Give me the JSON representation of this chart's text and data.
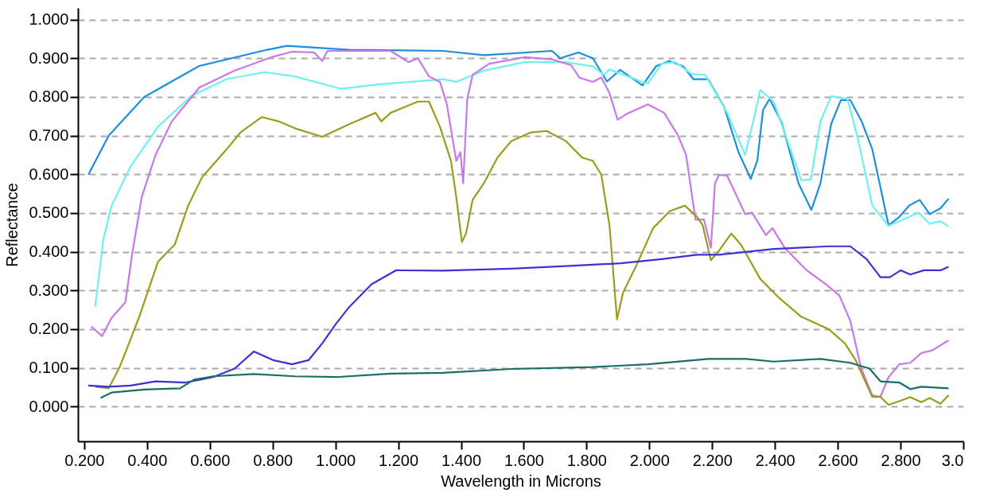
{
  "chart_data": {
    "type": "line",
    "xlabel": "Wavelength in Microns",
    "ylabel": "Reflectance",
    "grid": "y",
    "xlim": [
      0.18,
      3.0
    ],
    "ylim": [
      -0.09,
      1.03
    ],
    "xticks": [
      {
        "value": 0.2,
        "label": "0.200"
      },
      {
        "value": 0.4,
        "label": "0.400"
      },
      {
        "value": 0.6,
        "label": "0.600"
      },
      {
        "value": 0.8,
        "label": "0.800"
      },
      {
        "value": 1.0,
        "label": "1.000"
      },
      {
        "value": 1.2,
        "label": "1.200"
      },
      {
        "value": 1.4,
        "label": "1.400"
      },
      {
        "value": 1.6,
        "label": "1.600"
      },
      {
        "value": 1.8,
        "label": "1.800"
      },
      {
        "value": 2.0,
        "label": "2.000"
      },
      {
        "value": 2.2,
        "label": "2.200"
      },
      {
        "value": 2.4,
        "label": "2.400"
      },
      {
        "value": 2.6,
        "label": "2.600"
      },
      {
        "value": 2.8,
        "label": "2.800"
      },
      {
        "value": 3.0,
        "label": "3.0"
      }
    ],
    "yticks": [
      {
        "value": 0.0,
        "label": "0.000"
      },
      {
        "value": 0.1,
        "label": "0.100"
      },
      {
        "value": 0.2,
        "label": "0.200"
      },
      {
        "value": 0.3,
        "label": "0.300"
      },
      {
        "value": 0.4,
        "label": "0.400"
      },
      {
        "value": 0.5,
        "label": "0.500"
      },
      {
        "value": 0.6,
        "label": "0.600"
      },
      {
        "value": 0.7,
        "label": "0.700"
      },
      {
        "value": 0.8,
        "label": "0.800"
      },
      {
        "value": 0.9,
        "label": "0.900"
      },
      {
        "value": 1.0,
        "label": "1.000"
      }
    ],
    "series": [
      {
        "color": "#1e8fdc",
        "x": [
          0.213,
          0.278,
          0.391,
          0.566,
          0.783,
          0.846,
          1.045,
          1.343,
          1.473,
          1.69,
          1.716,
          1.774,
          1.82,
          1.865,
          1.907,
          1.978,
          2.022,
          2.064,
          2.108,
          2.14,
          2.187,
          2.239,
          2.284,
          2.323,
          2.344,
          2.362,
          2.383,
          2.422,
          2.475,
          2.516,
          2.545,
          2.579,
          2.61,
          2.64,
          2.676,
          2.71,
          2.762,
          2.796,
          2.827,
          2.861,
          2.893,
          2.927,
          2.953
        ],
        "values": [
          0.599,
          0.7,
          0.8,
          0.88,
          0.922,
          0.932,
          0.922,
          0.919,
          0.908,
          0.919,
          0.9,
          0.915,
          0.9,
          0.84,
          0.87,
          0.83,
          0.88,
          0.893,
          0.879,
          0.846,
          0.846,
          0.773,
          0.657,
          0.588,
          0.636,
          0.766,
          0.795,
          0.733,
          0.577,
          0.508,
          0.577,
          0.73,
          0.792,
          0.792,
          0.737,
          0.665,
          0.468,
          0.49,
          0.519,
          0.534,
          0.497,
          0.512,
          0.537
        ]
      },
      {
        "color": "#6ff0f0",
        "x": [
          0.235,
          0.261,
          0.287,
          0.348,
          0.435,
          0.54,
          0.653,
          0.775,
          0.871,
          1.019,
          1.132,
          1.342,
          1.385,
          1.473,
          1.603,
          1.734,
          1.82,
          1.855,
          1.873,
          1.978,
          1.995,
          2.039,
          2.082,
          2.135,
          2.178,
          2.248,
          2.305,
          2.331,
          2.353,
          2.396,
          2.484,
          2.514,
          2.545,
          2.579,
          2.631,
          2.666,
          2.71,
          2.762,
          2.858,
          2.893,
          2.927,
          2.953
        ],
        "values": [
          0.258,
          0.432,
          0.519,
          0.621,
          0.723,
          0.802,
          0.846,
          0.864,
          0.853,
          0.821,
          0.832,
          0.846,
          0.839,
          0.868,
          0.89,
          0.89,
          0.879,
          0.857,
          0.871,
          0.839,
          0.835,
          0.886,
          0.89,
          0.859,
          0.857,
          0.759,
          0.65,
          0.737,
          0.818,
          0.788,
          0.585,
          0.586,
          0.737,
          0.802,
          0.795,
          0.686,
          0.519,
          0.467,
          0.501,
          0.472,
          0.479,
          0.465
        ]
      },
      {
        "color": "#c878ea",
        "x": [
          0.222,
          0.257,
          0.287,
          0.331,
          0.353,
          0.383,
          0.427,
          0.479,
          0.566,
          0.679,
          0.801,
          0.862,
          0.932,
          0.958,
          0.975,
          1.176,
          1.233,
          1.263,
          1.298,
          1.333,
          1.355,
          1.385,
          1.398,
          1.407,
          1.42,
          1.437,
          1.49,
          1.603,
          1.69,
          1.751,
          1.777,
          1.82,
          1.847,
          1.873,
          1.899,
          1.925,
          1.995,
          2.047,
          2.091,
          2.117,
          2.147,
          2.174,
          2.196,
          2.209,
          2.222,
          2.248,
          2.284,
          2.305,
          2.327,
          2.371,
          2.392,
          2.431,
          2.501,
          2.562,
          2.605,
          2.64,
          2.675,
          2.71,
          2.736,
          2.762,
          2.796,
          2.831,
          2.866,
          2.901,
          2.953
        ],
        "values": [
          0.207,
          0.182,
          0.229,
          0.269,
          0.396,
          0.541,
          0.65,
          0.737,
          0.824,
          0.868,
          0.904,
          0.917,
          0.915,
          0.893,
          0.919,
          0.919,
          0.89,
          0.9,
          0.853,
          0.839,
          0.781,
          0.635,
          0.657,
          0.577,
          0.795,
          0.857,
          0.886,
          0.903,
          0.897,
          0.882,
          0.85,
          0.839,
          0.85,
          0.81,
          0.741,
          0.755,
          0.781,
          0.759,
          0.701,
          0.65,
          0.483,
          0.483,
          0.41,
          0.577,
          0.599,
          0.596,
          0.534,
          0.497,
          0.501,
          0.443,
          0.461,
          0.41,
          0.352,
          0.316,
          0.287,
          0.221,
          0.098,
          0.029,
          0.025,
          0.076,
          0.109,
          0.113,
          0.138,
          0.145,
          0.171
        ]
      },
      {
        "color": "#9c9c1c",
        "x": [
          0.235,
          0.278,
          0.313,
          0.374,
          0.435,
          0.461,
          0.488,
          0.531,
          0.575,
          0.653,
          0.697,
          0.766,
          0.819,
          0.871,
          0.958,
          1.045,
          1.128,
          1.146,
          1.176,
          1.263,
          1.298,
          1.333,
          1.368,
          1.385,
          1.403,
          1.416,
          1.437,
          1.473,
          1.516,
          1.56,
          1.621,
          1.673,
          1.734,
          1.786,
          1.82,
          1.847,
          1.873,
          1.897,
          1.916,
          1.96,
          2.012,
          2.065,
          2.113,
          2.152,
          2.17,
          2.196,
          2.222,
          2.261,
          2.292,
          2.353,
          2.414,
          2.484,
          2.571,
          2.623,
          2.657,
          2.71,
          2.736,
          2.762,
          2.831,
          2.866,
          2.893,
          2.927,
          2.953
        ],
        "values": [
          0.051,
          0.047,
          0.102,
          0.229,
          0.374,
          0.396,
          0.418,
          0.519,
          0.592,
          0.664,
          0.708,
          0.748,
          0.737,
          0.719,
          0.697,
          0.73,
          0.759,
          0.737,
          0.759,
          0.788,
          0.788,
          0.723,
          0.635,
          0.541,
          0.425,
          0.447,
          0.534,
          0.577,
          0.643,
          0.686,
          0.708,
          0.712,
          0.686,
          0.643,
          0.635,
          0.599,
          0.468,
          0.225,
          0.294,
          0.367,
          0.461,
          0.505,
          0.519,
          0.49,
          0.468,
          0.378,
          0.403,
          0.447,
          0.418,
          0.33,
          0.28,
          0.232,
          0.2,
          0.163,
          0.12,
          0.025,
          0.025,
          0.004,
          0.024,
          0.011,
          0.022,
          0.007,
          0.029
        ]
      },
      {
        "color": "#3c32d2",
        "x": [
          0.213,
          0.278,
          0.348,
          0.427,
          0.523,
          0.61,
          0.679,
          0.74,
          0.801,
          0.862,
          0.915,
          0.958,
          1.002,
          1.045,
          1.115,
          1.193,
          1.342,
          1.56,
          1.734,
          1.908,
          2.039,
          2.152,
          2.222,
          2.396,
          2.571,
          2.64,
          2.692,
          2.736,
          2.766,
          2.801,
          2.831,
          2.875,
          2.927,
          2.953
        ],
        "values": [
          0.054,
          0.051,
          0.054,
          0.065,
          0.062,
          0.076,
          0.098,
          0.142,
          0.12,
          0.109,
          0.12,
          0.163,
          0.214,
          0.258,
          0.316,
          0.352,
          0.351,
          0.356,
          0.363,
          0.37,
          0.381,
          0.392,
          0.392,
          0.407,
          0.414,
          0.414,
          0.381,
          0.334,
          0.334,
          0.352,
          0.341,
          0.352,
          0.352,
          0.361
        ]
      },
      {
        "color": "#1b6e66",
        "x": [
          0.252,
          0.287,
          0.391,
          0.505,
          0.549,
          0.61,
          0.74,
          0.871,
          1.002,
          1.176,
          1.342,
          1.56,
          1.82,
          1.995,
          2.16,
          2.187,
          2.309,
          2.396,
          2.545,
          2.64,
          2.701,
          2.736,
          2.796,
          2.831,
          2.866,
          2.953
        ],
        "values": [
          0.022,
          0.036,
          0.044,
          0.047,
          0.069,
          0.078,
          0.084,
          0.078,
          0.076,
          0.085,
          0.087,
          0.097,
          0.102,
          0.109,
          0.121,
          0.123,
          0.123,
          0.116,
          0.123,
          0.113,
          0.098,
          0.065,
          0.062,
          0.045,
          0.051,
          0.047
        ]
      }
    ]
  }
}
